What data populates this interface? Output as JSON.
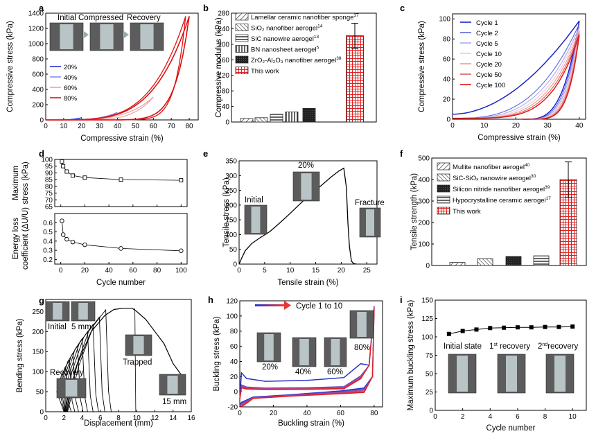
{
  "chart_data": [
    {
      "panel": "a",
      "type": "line",
      "xlabel": "Compressive strain (%)",
      "ylabel": "Compressive stress (kPa)",
      "xlim": [
        0,
        85
      ],
      "ylim": [
        0,
        1400
      ],
      "xticks": [
        0,
        10,
        20,
        30,
        40,
        50,
        60,
        70,
        80
      ],
      "yticks": [
        0,
        200,
        400,
        600,
        800,
        1000,
        1200,
        1400
      ],
      "photo_labels": [
        "Initial",
        "Compressed",
        "Recovery"
      ],
      "series": [
        {
          "name": "20%",
          "color": "#2233cc",
          "max_strain": 20,
          "peak": 30,
          "residual": 1
        },
        {
          "name": "40%",
          "color": "#8c8cf0",
          "max_strain": 40,
          "peak": 100,
          "residual": 3
        },
        {
          "name": "60%",
          "color": "#f0a0a0",
          "max_strain": 60,
          "peak": 300,
          "residual": 6
        },
        {
          "name": "80%",
          "color": "#dd1111",
          "max_strain": 80,
          "peak": 1360,
          "residual": 10
        }
      ]
    },
    {
      "panel": "b",
      "type": "bar",
      "ylabel": "Compressive modulus (kPa)",
      "ylim": [
        0,
        280
      ],
      "yticks": [
        0,
        40,
        80,
        120,
        160,
        200,
        240,
        280
      ],
      "categories": [
        {
          "label": "Lamellar ceramic nanofiber sponge",
          "sup": "37"
        },
        {
          "label": "SiO₂ nanofiber aerogel",
          "sup": "14"
        },
        {
          "label": "SiC nanowire aerogel",
          "sup": "13"
        },
        {
          "label": "BN nanosheet aerogel",
          "sup": "5"
        },
        {
          "label": "ZrO₂-Al₂O₃ nanofiber aerogel",
          "sup": "38"
        },
        {
          "label": "This work",
          "sup": ""
        }
      ],
      "values": [
        9,
        11,
        20,
        26,
        35,
        222
      ],
      "error": [
        0,
        0,
        0,
        0,
        0,
        32
      ]
    },
    {
      "panel": "c",
      "type": "line",
      "xlabel": "Compressive strain (%)",
      "ylabel": "Compressive stress (kPa)",
      "xlim": [
        0,
        42
      ],
      "ylim": [
        0,
        105
      ],
      "xticks": [
        0,
        10,
        20,
        30,
        40
      ],
      "yticks": [
        0,
        20,
        40,
        60,
        80,
        100
      ],
      "series": [
        {
          "name": "Cycle 1",
          "color": "#1a22c8",
          "peak": 98
        },
        {
          "name": "Cycle 2",
          "color": "#5c64e0",
          "peak": 95
        },
        {
          "name": "Cycle 5",
          "color": "#a8aaf2",
          "peak": 92
        },
        {
          "name": "Cycle 10",
          "color": "#f3c6c6",
          "peak": 90
        },
        {
          "name": "Cycle 20",
          "color": "#ee9a9a",
          "peak": 88
        },
        {
          "name": "Cycle 50",
          "color": "#e25a5a",
          "peak": 86
        },
        {
          "name": "Cycle 100",
          "color": "#e01818",
          "peak": 84
        }
      ]
    },
    {
      "panel": "d",
      "type": "scatter",
      "xlabel": "Cycle number",
      "top": {
        "ylabel_lines": [
          "Maximum",
          "stress (kPa)"
        ],
        "ylim": [
          65,
          100
        ],
        "yticks": [
          65,
          70,
          75,
          80,
          85,
          90,
          95,
          100
        ],
        "x": [
          1,
          2,
          5,
          10,
          20,
          50,
          100
        ],
        "y": [
          98.5,
          95,
          91,
          88,
          86.5,
          85,
          84.5
        ]
      },
      "bottom": {
        "ylabel_lines": [
          "Energy loss",
          "coefficient (ΔU/U)"
        ],
        "ylim": [
          0.15,
          0.7
        ],
        "yticks": [
          0.2,
          0.3,
          0.4,
          0.5,
          0.6
        ],
        "x": [
          1,
          2,
          5,
          10,
          20,
          50,
          100
        ],
        "y": [
          0.62,
          0.47,
          0.42,
          0.39,
          0.36,
          0.32,
          0.295
        ]
      },
      "xticks": [
        0,
        20,
        40,
        60,
        80,
        100
      ]
    },
    {
      "panel": "e",
      "type": "line",
      "xlabel": "Tensile strain (%)",
      "ylabel": "Tensile stress (kPa)",
      "xlim": [
        0,
        27
      ],
      "ylim": [
        0,
        350
      ],
      "xticks": [
        0,
        5,
        10,
        15,
        20,
        25
      ],
      "yticks": [
        0,
        50,
        100,
        150,
        200,
        250,
        300,
        350
      ],
      "photo_labels": [
        "Initial",
        "20%",
        "Fracture"
      ],
      "peak": {
        "x": 20.5,
        "y": 325
      }
    },
    {
      "panel": "f",
      "type": "bar",
      "ylabel": "Tensile strength (kPa)",
      "ylim": [
        0,
        500
      ],
      "yticks": [
        0,
        100,
        200,
        300,
        400,
        500
      ],
      "categories": [
        {
          "label": "Mullite nanofiber aerogel",
          "sup": "40"
        },
        {
          "label": "SiC-SiOₓ nanowire aerogel",
          "sup": "30"
        },
        {
          "label": "Silicon nitride nanofiber aerogel",
          "sup": "39"
        },
        {
          "label": "Hypocrystalline ceramic aerogel",
          "sup": "17"
        },
        {
          "label": "This work",
          "sup": ""
        }
      ],
      "values": [
        14,
        32,
        42,
        45,
        400
      ],
      "error": [
        0,
        0,
        0,
        0,
        82
      ]
    },
    {
      "panel": "g",
      "type": "line",
      "xlabel": "Displacement (mm)",
      "ylabel": "Bending stress (kPa)",
      "xlim": [
        0,
        16
      ],
      "ylim": [
        0,
        280
      ],
      "xticks": [
        0,
        2,
        4,
        6,
        8,
        10,
        12,
        14,
        16
      ],
      "yticks": [
        0,
        50,
        100,
        150,
        200,
        250
      ],
      "photo_labels": [
        "Initial",
        "5 mm",
        "Trapped",
        "Recovery",
        "15 mm"
      ],
      "peak": {
        "x": 9.5,
        "y": 258
      }
    },
    {
      "panel": "h",
      "type": "line",
      "xlabel": "Buckling strain (%)",
      "ylabel": "Buckling stress (kPa)",
      "xlim": [
        0,
        85
      ],
      "ylim": [
        -20,
        120
      ],
      "xticks": [
        0,
        20,
        40,
        60,
        80
      ],
      "yticks": [
        -20,
        0,
        20,
        40,
        60,
        80,
        100,
        120
      ],
      "arrow_label": "Cycle 1 to 10",
      "photo_labels": [
        "20%",
        "40%",
        "60%",
        "80%"
      ],
      "peak": 113
    },
    {
      "panel": "i",
      "type": "line",
      "xlabel": "Cycle number",
      "ylabel": "Maximum buckling stress (kPa)",
      "xlim": [
        0,
        11
      ],
      "ylim": [
        0,
        150
      ],
      "xticks": [
        0,
        2,
        4,
        6,
        8,
        10
      ],
      "yticks": [
        0,
        25,
        50,
        75,
        100,
        125,
        150
      ],
      "x": [
        1,
        2,
        3,
        4,
        5,
        6,
        7,
        8,
        9,
        10
      ],
      "y": [
        104,
        108,
        110,
        112,
        112.5,
        113,
        113,
        113.5,
        113.5,
        114
      ],
      "photo_labels": [
        "Initial state",
        "1",
        "st",
        " recovery",
        "2",
        "nd",
        "recovery"
      ]
    }
  ]
}
